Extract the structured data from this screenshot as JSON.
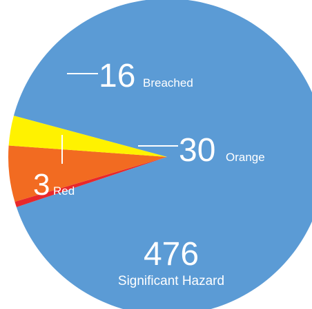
{
  "chart_data": {
    "type": "pie",
    "slices": [
      {
        "label": "Significant Hazard",
        "value": 476,
        "color": "#5b9bd5"
      },
      {
        "label": "Red",
        "value": 3,
        "color": "#e8282b"
      },
      {
        "label": "Orange",
        "value": 30,
        "color": "#f26b21"
      },
      {
        "label": "Breached",
        "value": 16,
        "color": "#fff200"
      }
    ],
    "labels": [
      {
        "value": "16",
        "name": "Breached"
      },
      {
        "value": "30",
        "name": "Orange"
      },
      {
        "value": "3",
        "name": "Red"
      },
      {
        "value": "476",
        "name": "Significant Hazard"
      }
    ]
  }
}
